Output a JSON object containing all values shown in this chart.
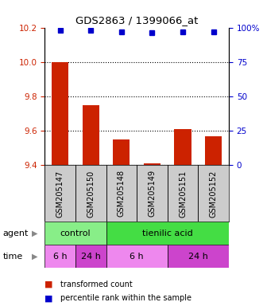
{
  "title": "GDS2863 / 1399066_at",
  "samples": [
    "GSM205147",
    "GSM205150",
    "GSM205148",
    "GSM205149",
    "GSM205151",
    "GSM205152"
  ],
  "bar_values": [
    10.0,
    9.75,
    9.55,
    9.41,
    9.61,
    9.57
  ],
  "percentile_values": [
    98,
    98,
    97,
    96,
    97,
    97
  ],
  "bar_color": "#cc2200",
  "dot_color": "#0000cc",
  "ylim_left": [
    9.4,
    10.2
  ],
  "ylim_right": [
    0,
    100
  ],
  "left_ticks": [
    9.4,
    9.6,
    9.8,
    10.0,
    10.2
  ],
  "right_ticks": [
    0,
    25,
    50,
    75,
    100
  ],
  "right_tick_labels": [
    "0",
    "25",
    "50",
    "75",
    "100%"
  ],
  "bar_bottom": 9.4,
  "grid_lines": [
    9.4,
    9.6,
    9.8,
    10.0
  ],
  "control_color": "#88ee88",
  "tienilic_color": "#44dd44",
  "time_6h_light": "#ee88ee",
  "time_24h_dark": "#cc44cc",
  "sample_box_color": "#cccccc",
  "n_samples": 6
}
